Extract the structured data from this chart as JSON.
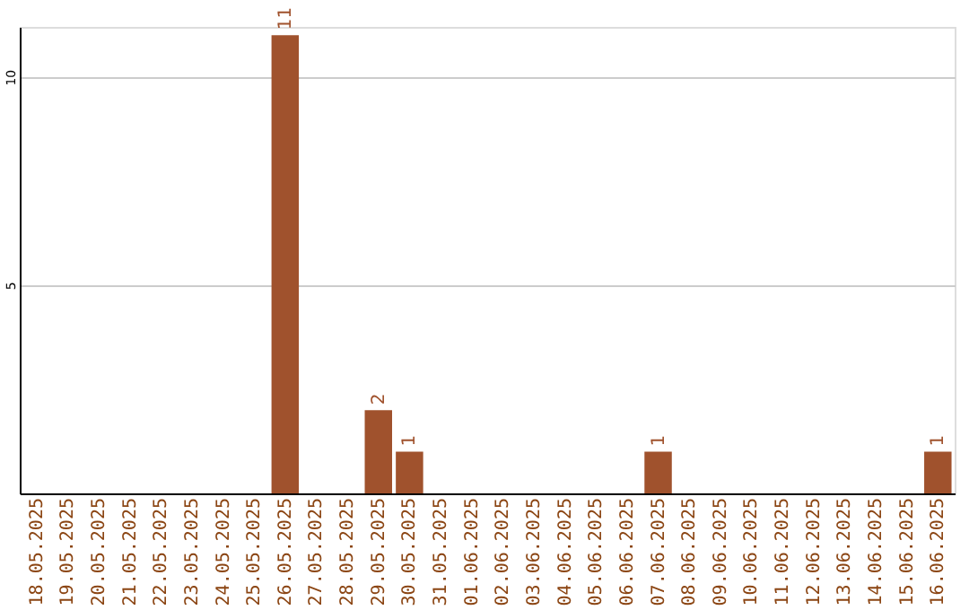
{
  "chart_data": {
    "type": "bar",
    "categories": [
      "18.05.2025",
      "19.05.2025",
      "20.05.2025",
      "21.05.2025",
      "22.05.2025",
      "23.05.2025",
      "24.05.2025",
      "25.05.2025",
      "26.05.2025",
      "27.05.2025",
      "28.05.2025",
      "29.05.2025",
      "30.05.2025",
      "31.05.2025",
      "01.06.2025",
      "02.06.2025",
      "03.06.2025",
      "04.06.2025",
      "05.06.2025",
      "06.06.2025",
      "07.06.2025",
      "08.06.2025",
      "09.06.2025",
      "10.06.2025",
      "11.06.2025",
      "12.06.2025",
      "13.06.2025",
      "14.06.2025",
      "15.06.2025",
      "16.06.2025"
    ],
    "values": [
      0,
      0,
      0,
      0,
      0,
      0,
      0,
      0,
      11,
      0,
      0,
      2,
      1,
      0,
      0,
      0,
      0,
      0,
      0,
      0,
      1,
      0,
      0,
      0,
      0,
      0,
      0,
      0,
      0,
      1
    ],
    "value_labels": [
      null,
      null,
      null,
      null,
      null,
      null,
      null,
      null,
      "11",
      null,
      null,
      "2",
      "1",
      null,
      null,
      null,
      null,
      null,
      null,
      null,
      "1",
      null,
      null,
      null,
      null,
      null,
      null,
      null,
      null,
      "1"
    ],
    "color": "#a0522d",
    "ylim": [
      0,
      11.2
    ],
    "yticks": [
      5,
      10
    ],
    "grid": "y"
  }
}
